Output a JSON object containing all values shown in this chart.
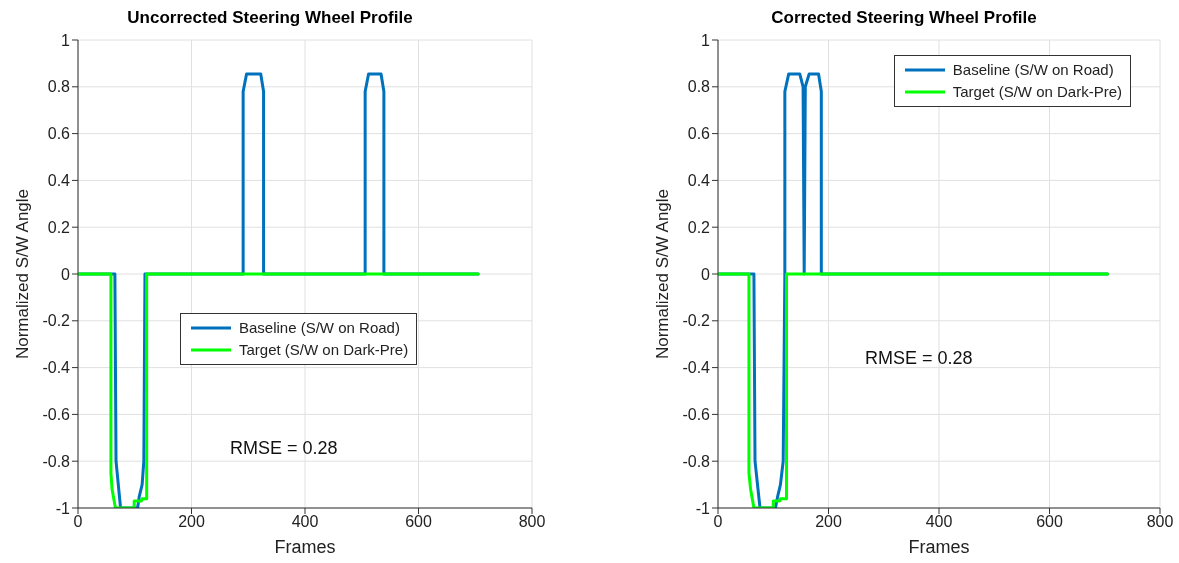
{
  "chart_data": [
    {
      "type": "line",
      "title": "Uncorrected Steering Wheel Profile",
      "xlabel": "Frames",
      "ylabel": "Normalized S/W Angle",
      "xlim": [
        0,
        800
      ],
      "xticks": [
        0,
        200,
        400,
        600,
        800
      ],
      "ylim": [
        -1,
        1
      ],
      "yticks": [
        -1,
        -0.8,
        -0.6,
        -0.4,
        -0.2,
        0,
        0.2,
        0.4,
        0.6,
        0.8,
        1
      ],
      "grid": true,
      "legend": "center",
      "line_style": "solid",
      "marker": "none",
      "annotations": [
        "RMSE = 0.28"
      ],
      "series": [
        {
          "name": "Baseline (S/W on Road)",
          "color": "#0072bd",
          "x": [
            0,
            65,
            67,
            75,
            105,
            108,
            113,
            116,
            118,
            291,
            291,
            297,
            322,
            327,
            327,
            506,
            506,
            512,
            534,
            539,
            539,
            705
          ],
          "values": [
            0,
            0,
            -0.8,
            -1,
            -1,
            -0.95,
            -0.9,
            -0.8,
            0,
            0,
            0.78,
            0.855,
            0.855,
            0.78,
            0,
            0,
            0.78,
            0.855,
            0.855,
            0.78,
            0,
            0
          ]
        },
        {
          "name": "Target (S/W on Dark-Pre)",
          "color": "#00ff00",
          "x": [
            0,
            58,
            58,
            60,
            66,
            99,
            99,
            112,
            113,
            121,
            121,
            705
          ],
          "values": [
            0,
            0,
            -0.85,
            -0.92,
            -1,
            -1,
            -0.97,
            -0.97,
            -0.96,
            -0.96,
            0,
            0
          ]
        }
      ]
    },
    {
      "type": "line",
      "title": "Corrected Steering Wheel Profile",
      "xlabel": "Frames",
      "ylabel": "Normalized S/W Angle",
      "xlim": [
        0,
        800
      ],
      "xticks": [
        0,
        200,
        400,
        600,
        800
      ],
      "ylim": [
        -1,
        1
      ],
      "yticks": [
        -1,
        -0.8,
        -0.6,
        -0.4,
        -0.2,
        0,
        0.2,
        0.4,
        0.6,
        0.8,
        1
      ],
      "grid": true,
      "legend": "top right",
      "line_style": "solid",
      "marker": "none",
      "annotations": [
        "RMSE = 0.28"
      ],
      "series": [
        {
          "name": "Baseline (S/W on Road)",
          "color": "#0072bd",
          "x": [
            0,
            65,
            67,
            76,
            104,
            108,
            113,
            118,
            121,
            121,
            128,
            148,
            154,
            156,
            158,
            165,
            182,
            187,
            187,
            705
          ],
          "values": [
            0,
            0,
            -0.8,
            -1,
            -1,
            -0.95,
            -0.9,
            -0.8,
            0,
            0.78,
            0.855,
            0.855,
            0.8,
            0,
            0.8,
            0.855,
            0.855,
            0.78,
            0,
            0
          ]
        },
        {
          "name": "Target (S/W on Dark-Pre)",
          "color": "#00ff00",
          "x": [
            0,
            56,
            56,
            59,
            65,
            100,
            100,
            112,
            113,
            124,
            124,
            705
          ],
          "values": [
            0,
            0,
            -0.85,
            -0.92,
            -1,
            -1,
            -0.97,
            -0.97,
            -0.96,
            -0.96,
            0,
            0
          ]
        }
      ]
    }
  ]
}
